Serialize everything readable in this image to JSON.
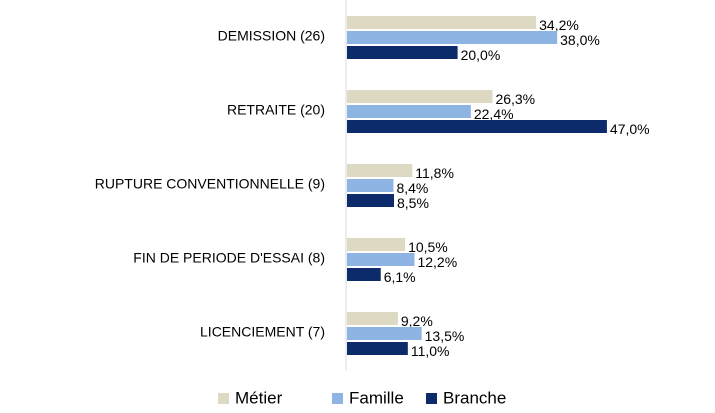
{
  "chart_data": {
    "type": "bar",
    "orientation": "horizontal",
    "categories": [
      "DEMISSION (26)",
      "RETRAITE (20)",
      "RUPTURE CONVENTIONNELLE (9)",
      "FIN DE PERIODE D'ESSAI (8)",
      "LICENCIEMENT (7)"
    ],
    "series": [
      {
        "name": "Métier",
        "color": "#ddd9c3",
        "values": [
          34.2,
          26.3,
          11.8,
          10.5,
          9.2
        ],
        "value_labels": [
          "34,2%",
          "26,3%",
          "11,8%",
          "10,5%",
          "9,2%"
        ]
      },
      {
        "name": "Famille",
        "color": "#8db4e2",
        "values": [
          38.0,
          22.4,
          8.4,
          12.2,
          13.5
        ],
        "value_labels": [
          "38,0%",
          "22,4%",
          "8,4%",
          "12,2%",
          "13,5%"
        ]
      },
      {
        "name": "Branche",
        "color": "#0d2a6b",
        "values": [
          20.0,
          47.0,
          8.5,
          6.1,
          11.0
        ],
        "value_labels": [
          "20,0%",
          "47,0%",
          "8,5%",
          "6,1%",
          "11,0%"
        ]
      }
    ],
    "legend": "bottom"
  }
}
